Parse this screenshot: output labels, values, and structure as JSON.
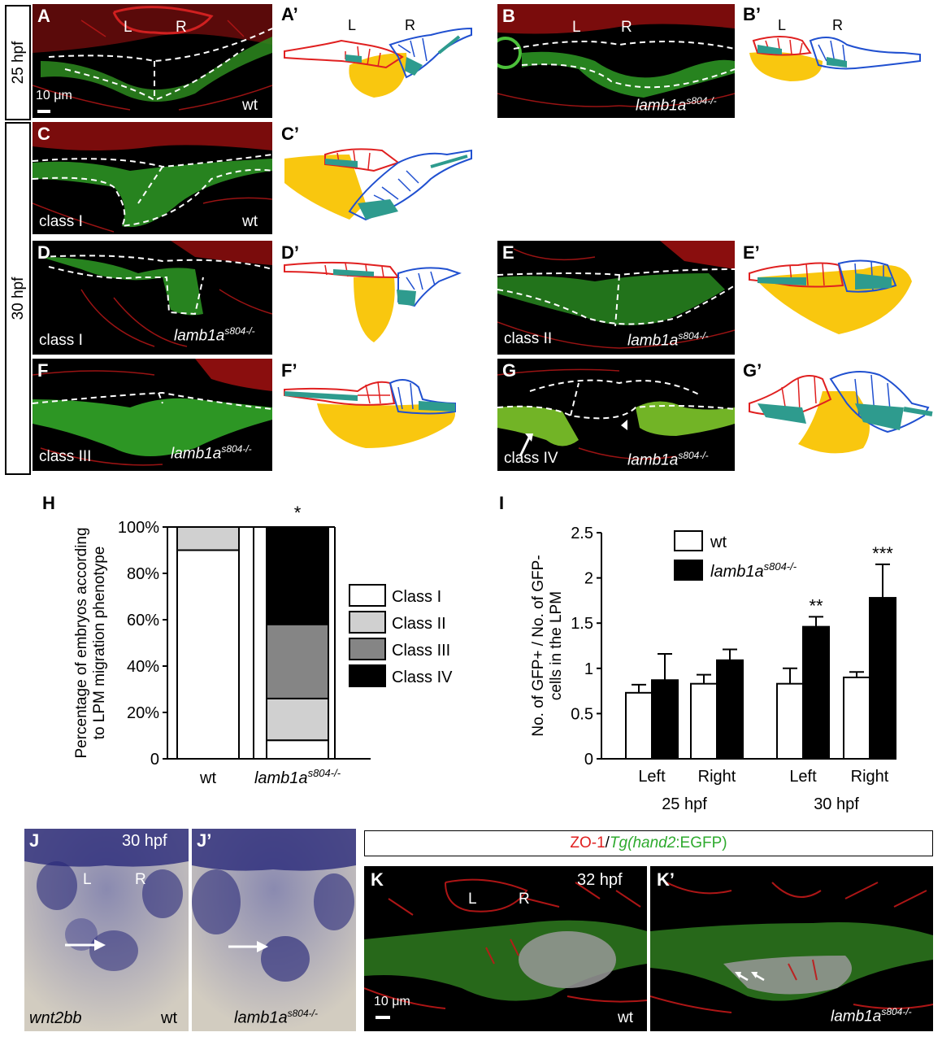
{
  "side_labels": {
    "t25": "25 hpf",
    "t30": "30 hpf"
  },
  "panels": {
    "A": {
      "letter": "A",
      "scale": "10 μm",
      "geno": "wt",
      "L": "L",
      "R": "R"
    },
    "Ap": {
      "letter": "A’",
      "L": "L",
      "R": "R"
    },
    "B": {
      "letter": "B",
      "geno": "lamb1a",
      "sup": "s804-/-",
      "L": "L",
      "R": "R"
    },
    "Bp": {
      "letter": "B’",
      "L": "L",
      "R": "R"
    },
    "C": {
      "letter": "C",
      "cls": "class I",
      "geno": "wt"
    },
    "Cp": {
      "letter": "C’"
    },
    "D": {
      "letter": "D",
      "cls": "class I",
      "geno": "lamb1a",
      "sup": "s804-/-"
    },
    "Dp": {
      "letter": "D’"
    },
    "E": {
      "letter": "E",
      "cls": "class II",
      "geno": "lamb1a",
      "sup": "s804-/-"
    },
    "Ep": {
      "letter": "E’"
    },
    "F": {
      "letter": "F",
      "cls": "class III",
      "geno": "lamb1a",
      "sup": "s804-/-"
    },
    "Fp": {
      "letter": "F’"
    },
    "G": {
      "letter": "G",
      "cls": "class IV",
      "geno": "lamb1a",
      "sup": "s804-/-"
    },
    "Gp": {
      "letter": "G’"
    },
    "J": {
      "letter": "J",
      "time": "30 hpf",
      "L": "L",
      "R": "R",
      "gene": "wnt2bb",
      "geno": "wt"
    },
    "Jp": {
      "letter": "J’",
      "geno": "lamb1a",
      "sup": "s804-/-"
    },
    "K": {
      "letter": "K",
      "time": "32 hpf",
      "L": "L",
      "R": "R",
      "scale": "10 μm",
      "geno": "wt"
    },
    "Kp": {
      "letter": "K’",
      "geno": "lamb1a",
      "sup": "s804-/-"
    }
  },
  "k_header": {
    "part1": "ZO-1",
    "slash": "/",
    "part2a": "Tg(",
    "part2b": "hand2",
    ":EGFP)": "",
    "part2c": ":EGFP)"
  },
  "chart_data": [
    {
      "type": "bar",
      "panel": "H",
      "stacked": true,
      "ylabel_line1": "Percentage of embryos according",
      "ylabel_line2": "to LPM migration phenotype",
      "ylim": [
        0,
        100
      ],
      "yticks": [
        "0",
        "20%",
        "40%",
        "60%",
        "80%",
        "100%"
      ],
      "categories": [
        "wt",
        "lamb1a"
      ],
      "category_sup": [
        "",
        "s804-/-"
      ],
      "significance": [
        "",
        "*"
      ],
      "series": [
        {
          "name": "Class I",
          "values": [
            90,
            8
          ],
          "color": "#ffffff"
        },
        {
          "name": "Class II",
          "values": [
            10,
            18
          ],
          "color": "#d0d0d0"
        },
        {
          "name": "Class III",
          "values": [
            0,
            32
          ],
          "color": "#858585"
        },
        {
          "name": "Class IV",
          "values": [
            0,
            42
          ],
          "color": "#000000"
        }
      ],
      "legend_position": "right"
    },
    {
      "type": "bar",
      "panel": "I",
      "ylabel_line1": "No. of GFP+ / No. of GFP-",
      "ylabel_line2": "cells in the LPM",
      "ylim": [
        0,
        2.5
      ],
      "yticks": [
        "0",
        "0.5",
        "1",
        "1.5",
        "2",
        "2.5"
      ],
      "categories": [
        "Left",
        "Right",
        "Left",
        "Right"
      ],
      "groups": [
        "25 hpf",
        "30 hpf"
      ],
      "series": [
        {
          "name": "wt",
          "values": [
            0.73,
            0.83,
            0.83,
            0.9
          ],
          "errors": [
            0.09,
            0.1,
            0.17,
            0.06
          ],
          "color": "#ffffff"
        },
        {
          "name": "lamb1a",
          "name_sup": "s804-/-",
          "values": [
            0.87,
            1.09,
            1.46,
            1.78
          ],
          "errors": [
            0.29,
            0.12,
            0.11,
            0.37
          ],
          "color": "#000000"
        }
      ],
      "significance": [
        "",
        "",
        "**",
        "***"
      ],
      "legend_position": "top-right"
    }
  ]
}
